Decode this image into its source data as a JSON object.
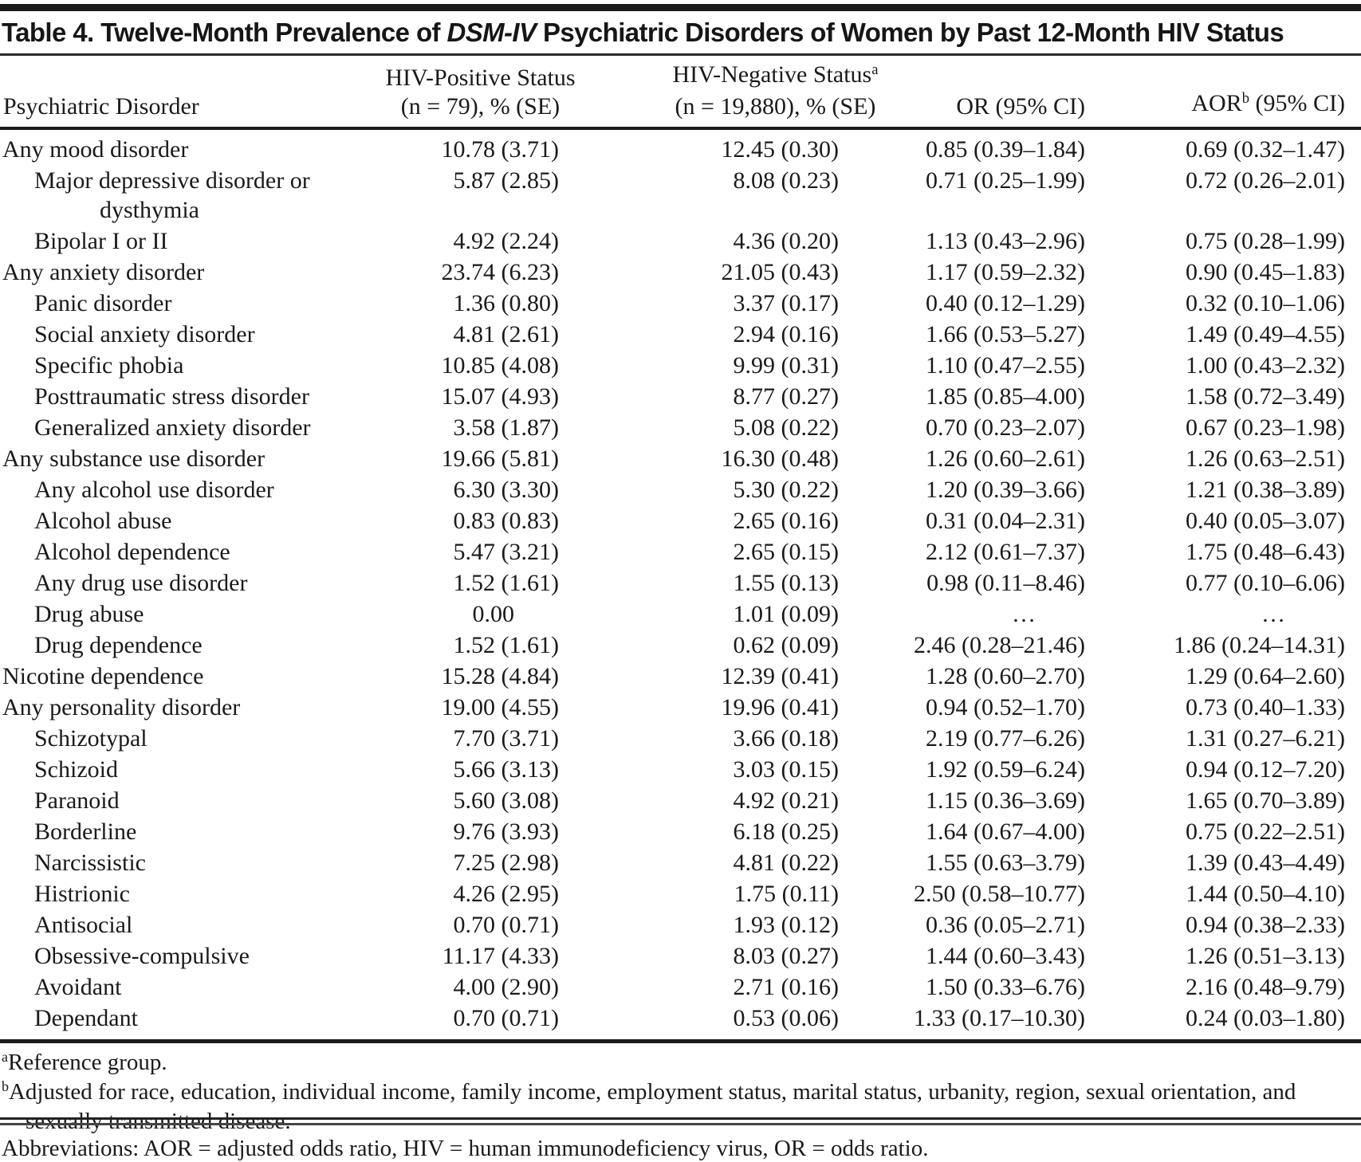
{
  "title": {
    "prefix": "Table 4. Twelve-Month Prevalence of ",
    "italic": "DSM-IV",
    "suffix": " Psychiatric Disorders of Women by Past 12-Month HIV Status"
  },
  "colors": {
    "background": "#ffffff",
    "text": "#1a1a1a",
    "rule": "#1b1b1b"
  },
  "columns": {
    "disorder": "Psychiatric Disorder",
    "hiv_pos_line1": "HIV-Positive Status",
    "hiv_pos_line2": "(n = 79), % (SE)",
    "hiv_neg_line1": "HIV-Negative Status",
    "hiv_neg_sup": "a",
    "hiv_neg_line2": "(n = 19,880), % (SE)",
    "or": "OR (95% CI)",
    "aor_prefix": "AOR",
    "aor_sup": "b",
    "aor_suffix": " (95% CI)"
  },
  "rows": [
    {
      "label": "Any mood disorder",
      "indent": 0,
      "hiv_pos": "10.78 (3.71)",
      "hiv_neg": "12.45 (0.30)",
      "or": "0.85 (0.39–1.84)",
      "aor": "0.69 (0.32–1.47)"
    },
    {
      "label": "Major depressive disorder or dysthymia",
      "indent": 1,
      "hiv_pos": "5.87 (2.85)",
      "hiv_neg": "8.08 (0.23)",
      "or": "0.71 (0.25–1.99)",
      "aor": "0.72 (0.26–2.01)"
    },
    {
      "label": "Bipolar I or II",
      "indent": 1,
      "hiv_pos": "4.92 (2.24)",
      "hiv_neg": "4.36 (0.20)",
      "or": "1.13 (0.43–2.96)",
      "aor": "0.75 (0.28–1.99)"
    },
    {
      "label": "Any anxiety disorder",
      "indent": 0,
      "hiv_pos": "23.74 (6.23)",
      "hiv_neg": "21.05 (0.43)",
      "or": "1.17 (0.59–2.32)",
      "aor": "0.90 (0.45–1.83)"
    },
    {
      "label": "Panic disorder",
      "indent": 1,
      "hiv_pos": "1.36 (0.80)",
      "hiv_neg": "3.37 (0.17)",
      "or": "0.40 (0.12–1.29)",
      "aor": "0.32 (0.10–1.06)"
    },
    {
      "label": "Social anxiety disorder",
      "indent": 1,
      "hiv_pos": "4.81 (2.61)",
      "hiv_neg": "2.94 (0.16)",
      "or": "1.66 (0.53–5.27)",
      "aor": "1.49 (0.49–4.55)"
    },
    {
      "label": "Specific phobia",
      "indent": 1,
      "hiv_pos": "10.85 (4.08)",
      "hiv_neg": "9.99 (0.31)",
      "or": "1.10 (0.47–2.55)",
      "aor": "1.00 (0.43–2.32)"
    },
    {
      "label": "Posttraumatic stress disorder",
      "indent": 1,
      "hiv_pos": "15.07 (4.93)",
      "hiv_neg": "8.77 (0.27)",
      "or": "1.85 (0.85–4.00)",
      "aor": "1.58 (0.72–3.49)"
    },
    {
      "label": "Generalized anxiety disorder",
      "indent": 1,
      "hiv_pos": "3.58 (1.87)",
      "hiv_neg": "5.08 (0.22)",
      "or": "0.70 (0.23–2.07)",
      "aor": "0.67 (0.23–1.98)"
    },
    {
      "label": "Any substance use disorder",
      "indent": 0,
      "hiv_pos": "19.66 (5.81)",
      "hiv_neg": "16.30 (0.48)",
      "or": "1.26 (0.60–2.61)",
      "aor": "1.26 (0.63–2.51)"
    },
    {
      "label": "Any alcohol use disorder",
      "indent": 1,
      "hiv_pos": "6.30 (3.30)",
      "hiv_neg": "5.30 (0.22)",
      "or": "1.20 (0.39–3.66)",
      "aor": "1.21 (0.38–3.89)"
    },
    {
      "label": "Alcohol abuse",
      "indent": 1,
      "hiv_pos": "0.83 (0.83)",
      "hiv_neg": "2.65 (0.16)",
      "or": "0.31 (0.04–2.31)",
      "aor": "0.40 (0.05–3.07)"
    },
    {
      "label": "Alcohol dependence",
      "indent": 1,
      "hiv_pos": "5.47 (3.21)",
      "hiv_neg": "2.65 (0.15)",
      "or": "2.12 (0.61–7.37)",
      "aor": "1.75 (0.48–6.43)"
    },
    {
      "label": "Any drug use disorder",
      "indent": 1,
      "hiv_pos": "1.52 (1.61)",
      "hiv_neg": "1.55 (0.13)",
      "or": "0.98 (0.11–8.46)",
      "aor": "0.77 (0.10–6.06)"
    },
    {
      "label": "Drug abuse",
      "indent": 1,
      "hiv_pos": "0.00",
      "hiv_neg": "1.01 (0.09)",
      "or": "…",
      "aor": "…"
    },
    {
      "label": "Drug dependence",
      "indent": 1,
      "hiv_pos": "1.52 (1.61)",
      "hiv_neg": "0.62 (0.09)",
      "or": "2.46 (0.28–21.46)",
      "aor": "1.86 (0.24–14.31)"
    },
    {
      "label": "Nicotine dependence",
      "indent": 0,
      "hiv_pos": "15.28 (4.84)",
      "hiv_neg": "12.39 (0.41)",
      "or": "1.28 (0.60–2.70)",
      "aor": "1.29 (0.64–2.60)"
    },
    {
      "label": "Any personality disorder",
      "indent": 0,
      "hiv_pos": "19.00 (4.55)",
      "hiv_neg": "19.96 (0.41)",
      "or": "0.94 (0.52–1.70)",
      "aor": "0.73 (0.40–1.33)"
    },
    {
      "label": "Schizotypal",
      "indent": 1,
      "hiv_pos": "7.70 (3.71)",
      "hiv_neg": "3.66 (0.18)",
      "or": "2.19 (0.77–6.26)",
      "aor": "1.31 (0.27–6.21)"
    },
    {
      "label": "Schizoid",
      "indent": 1,
      "hiv_pos": "5.66 (3.13)",
      "hiv_neg": "3.03 (0.15)",
      "or": "1.92 (0.59–6.24)",
      "aor": "0.94 (0.12–7.20)"
    },
    {
      "label": "Paranoid",
      "indent": 1,
      "hiv_pos": "5.60 (3.08)",
      "hiv_neg": "4.92 (0.21)",
      "or": "1.15 (0.36–3.69)",
      "aor": "1.65 (0.70–3.89)"
    },
    {
      "label": "Borderline",
      "indent": 1,
      "hiv_pos": "9.76 (3.93)",
      "hiv_neg": "6.18 (0.25)",
      "or": "1.64 (0.67–4.00)",
      "aor": "0.75 (0.22–2.51)"
    },
    {
      "label": "Narcissistic",
      "indent": 1,
      "hiv_pos": "7.25 (2.98)",
      "hiv_neg": "4.81 (0.22)",
      "or": "1.55 (0.63–3.79)",
      "aor": "1.39 (0.43–4.49)"
    },
    {
      "label": "Histrionic",
      "indent": 1,
      "hiv_pos": "4.26 (2.95)",
      "hiv_neg": "1.75 (0.11)",
      "or": "2.50 (0.58–10.77)",
      "aor": "1.44 (0.50–4.10)"
    },
    {
      "label": "Antisocial",
      "indent": 1,
      "hiv_pos": "0.70 (0.71)",
      "hiv_neg": "1.93 (0.12)",
      "or": "0.36 (0.05–2.71)",
      "aor": "0.94 (0.38–2.33)"
    },
    {
      "label": "Obsessive-compulsive",
      "indent": 1,
      "hiv_pos": "11.17 (4.33)",
      "hiv_neg": "8.03 (0.27)",
      "or": "1.44 (0.60–3.43)",
      "aor": "1.26 (0.51–3.13)"
    },
    {
      "label": "Avoidant",
      "indent": 1,
      "hiv_pos": "4.00 (2.90)",
      "hiv_neg": "2.71 (0.16)",
      "or": "1.50 (0.33–6.76)",
      "aor": "2.16 (0.48–9.79)"
    },
    {
      "label": "Dependant",
      "indent": 1,
      "hiv_pos": "0.70 (0.71)",
      "hiv_neg": "0.53 (0.06)",
      "or": "1.33 (0.17–10.30)",
      "aor": "0.24 (0.03–1.80)"
    }
  ],
  "footnotes": {
    "a_sup": "a",
    "a_text": "Reference group.",
    "b_sup": "b",
    "b_text": "Adjusted for race, education, individual income, family income, employment status, marital status, urbanity, region, sexual orientation, and sexually transmitted disease.",
    "abbrev": "Abbreviations: AOR = adjusted odds ratio, HIV = human immunodeficiency virus, OR = odds ratio."
  }
}
